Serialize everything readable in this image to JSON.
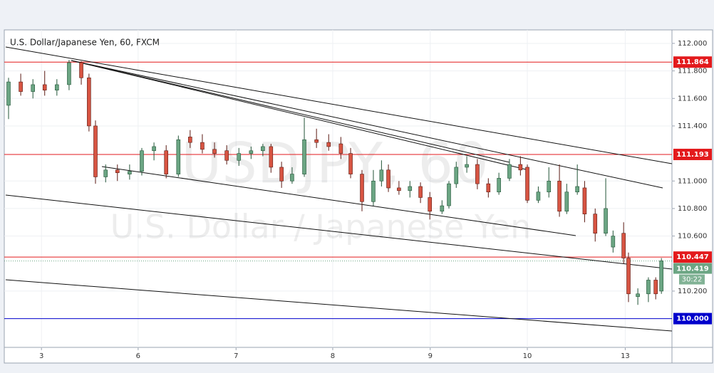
{
  "chart_data": {
    "type": "candlestick",
    "title": "U.S. Dollar/Japanese Yen, 60, FXCM",
    "watermark": "USDJPY, 60",
    "watermark_subtitle": "U.S. Dollar / Japanese Yen",
    "xlim": [
      0,
      164
    ],
    "xticks": [
      {
        "value": 8.8,
        "label": "3"
      },
      {
        "value": 32.6,
        "label": "6"
      },
      {
        "value": 56.7,
        "label": "7"
      },
      {
        "value": 80.5,
        "label": "8"
      },
      {
        "value": 104.5,
        "label": "9"
      },
      {
        "value": 128.4,
        "label": "10"
      },
      {
        "value": 152.5,
        "label": "13"
      }
    ],
    "ylim": [
      109.791,
      112.098
    ],
    "yticks": [
      {
        "value": 110.2,
        "label": "110.200"
      },
      {
        "value": 110.6,
        "label": "110.600"
      },
      {
        "value": 110.8,
        "label": "110.800"
      },
      {
        "value": 111,
        "label": "111.000"
      },
      {
        "value": 111.4,
        "label": "111.400"
      },
      {
        "value": 111.6,
        "label": "111.600"
      },
      {
        "value": 111.8,
        "label": "111.800"
      },
      {
        "value": 112,
        "label": "112.000"
      }
    ],
    "grid": true,
    "up_color": "#6ba583",
    "down_color": "#d75442",
    "x": [
      0.7,
      3.7,
      6.7,
      9.6,
      12.6,
      15.6,
      18.6,
      20.5,
      22.1,
      24.6,
      27.5,
      30.5,
      33.5,
      36.5,
      39.5,
      42.5,
      45.4,
      48.4,
      51.4,
      54.4,
      57.4,
      60.4,
      63.3,
      65.3,
      67.9,
      70.5,
      73.5,
      76.5,
      79.5,
      82.5,
      84.9,
      87.7,
      90.5,
      92.5,
      94.2,
      96.8,
      99.5,
      102.1,
      104.4,
      107.4,
      109.1,
      110.9,
      113.5,
      116.1,
      118.8,
      121.4,
      124,
      126.7,
      128.4,
      131.1,
      133.7,
      136.3,
      138.1,
      140.7,
      142.5,
      145.1,
      147.7,
      149.5,
      152.1,
      153.3,
      155.6,
      158.2,
      160,
      161.4
    ],
    "open": [
      111.55,
      111.72,
      111.65,
      111.7,
      111.66,
      111.7,
      111.86,
      111.75,
      111.4,
      111.03,
      111.08,
      111.05,
      111.07,
      111.22,
      111.22,
      111.05,
      111.32,
      111.28,
      111.23,
      111.22,
      111.15,
      111.2,
      111.22,
      111.25,
      111.1,
      111.0,
      111.05,
      111.3,
      111.28,
      111.27,
      111.2,
      111.05,
      110.85,
      111.0,
      111.08,
      110.95,
      110.93,
      110.96,
      110.88,
      110.78,
      110.82,
      110.98,
      111.1,
      111.12,
      110.98,
      110.92,
      111.02,
      111.12,
      111.1,
      110.86,
      110.92,
      111.0,
      110.78,
      110.92,
      110.95,
      110.76,
      110.62,
      110.52,
      110.62,
      110.44,
      110.16,
      110.18,
      110.28,
      110.2
    ],
    "high": [
      111.75,
      111.78,
      111.74,
      111.8,
      111.74,
      111.88,
      111.87,
      111.78,
      111.44,
      111.12,
      111.12,
      111.12,
      111.24,
      111.28,
      111.26,
      111.33,
      111.37,
      111.34,
      111.28,
      111.26,
      111.24,
      111.25,
      111.27,
      111.27,
      111.14,
      111.1,
      111.46,
      111.38,
      111.34,
      111.32,
      111.24,
      111.08,
      111.08,
      111.15,
      111.12,
      111.0,
      111.0,
      110.99,
      110.92,
      110.86,
      111.0,
      111.14,
      111.18,
      111.16,
      111.02,
      111.06,
      111.16,
      111.18,
      111.12,
      110.96,
      111.1,
      111.12,
      110.98,
      111.12,
      111.0,
      110.8,
      111.02,
      110.64,
      110.7,
      110.48,
      110.22,
      110.3,
      110.3,
      110.44
    ],
    "low": [
      111.45,
      111.62,
      111.6,
      111.62,
      111.62,
      111.66,
      111.7,
      111.36,
      110.98,
      110.99,
      111.0,
      111.01,
      111.04,
      111.15,
      111.02,
      111.03,
      111.24,
      111.2,
      111.17,
      111.12,
      111.11,
      111.16,
      111.18,
      111.06,
      110.95,
      110.98,
      111.03,
      111.24,
      111.22,
      111.16,
      111.02,
      110.78,
      110.82,
      110.96,
      110.92,
      110.9,
      110.88,
      110.84,
      110.72,
      110.76,
      110.8,
      110.95,
      111.06,
      110.94,
      110.88,
      110.9,
      111.0,
      111.04,
      110.84,
      110.84,
      110.88,
      110.74,
      110.76,
      110.9,
      110.7,
      110.56,
      110.6,
      110.48,
      110.4,
      110.12,
      110.1,
      110.12,
      110.14,
      110.18
    ],
    "close": [
      111.72,
      111.65,
      111.7,
      111.66,
      111.7,
      111.86,
      111.75,
      111.4,
      111.03,
      111.08,
      111.06,
      111.07,
      111.22,
      111.25,
      111.05,
      111.3,
      111.28,
      111.23,
      111.2,
      111.15,
      111.2,
      111.22,
      111.25,
      111.1,
      111.0,
      111.05,
      111.3,
      111.28,
      111.25,
      111.2,
      111.05,
      110.85,
      111.0,
      111.08,
      110.95,
      110.93,
      110.96,
      110.88,
      110.78,
      110.82,
      110.98,
      111.1,
      111.12,
      110.98,
      110.92,
      111.02,
      111.12,
      111.08,
      110.86,
      110.92,
      111.0,
      110.78,
      110.92,
      110.96,
      110.76,
      110.62,
      110.8,
      110.6,
      110.44,
      110.18,
      110.18,
      110.28,
      110.18,
      110.42
    ],
    "price_lines": [
      {
        "value": 111.864,
        "label": "111.864",
        "color": "#e31a1c"
      },
      {
        "value": 111.193,
        "label": "111.193",
        "color": "#e31a1c"
      },
      {
        "value": 110.447,
        "label": "110.447",
        "color": "#e31a1c"
      },
      {
        "value": 110,
        "label": "110.000",
        "color": "#0000cc"
      }
    ],
    "last_price": {
      "value": 110.419,
      "label": "110.419",
      "color": "#6ba583"
    },
    "countdown": "30:22"
  }
}
